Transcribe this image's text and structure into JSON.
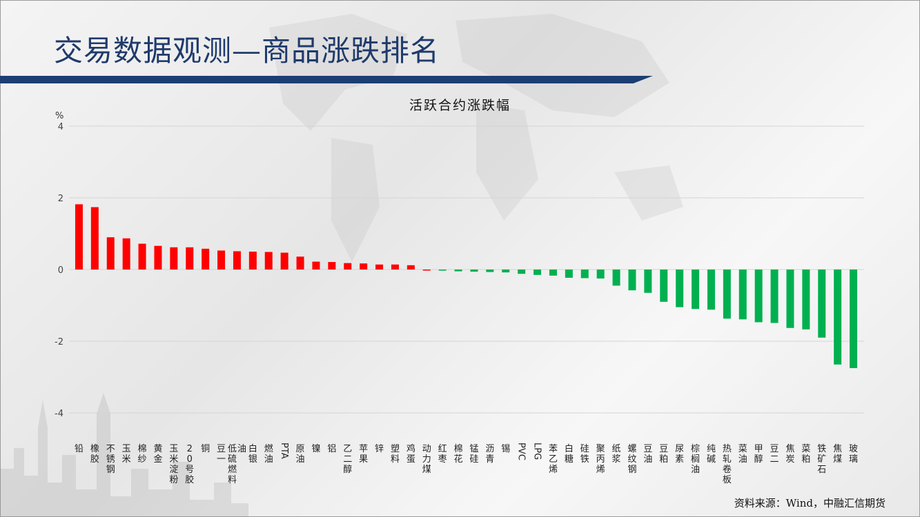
{
  "slide": {
    "title": "交易数据观测—商品涨跌排名",
    "source": "资料来源：Wind，中融汇信期货"
  },
  "colors": {
    "positive": "#ff0000",
    "negative": "#00b050",
    "title": "#1f3a6b",
    "title_bar": "#1c3e73"
  },
  "chart_data": {
    "type": "bar",
    "title": "活跃合约涨跌幅",
    "ylabel": "%",
    "ylim": [
      -4,
      4
    ],
    "yticks": [
      4,
      2,
      0,
      -2,
      -4
    ],
    "grid": true,
    "legend": "none",
    "categories": [
      "铅",
      "橡胶",
      "不锈钢",
      "玉米",
      "棉纱",
      "黄金",
      "玉米淀粉",
      "20号胶",
      "铜",
      "豆一",
      "低硫燃料油",
      "白银",
      "燃油",
      "PTA",
      "原油",
      "镍",
      "铝",
      "乙二醇",
      "苹果",
      "锌",
      "塑料",
      "鸡蛋",
      "动力煤",
      "红枣",
      "棉花",
      "锰硅",
      "沥青",
      "锡",
      "PVC",
      "LPG",
      "苯乙烯",
      "白糖",
      "硅铁",
      "聚丙烯",
      "纸浆",
      "螺纹钢",
      "豆油",
      "豆粕",
      "尿素",
      "棕榈油",
      "纯碱",
      "热轧卷板",
      "菜油",
      "甲醇",
      "豆二",
      "焦炭",
      "菜粕",
      "铁矿石",
      "焦煤",
      "玻璃"
    ],
    "values": [
      1.82,
      1.74,
      0.9,
      0.87,
      0.72,
      0.66,
      0.62,
      0.62,
      0.58,
      0.53,
      0.51,
      0.5,
      0.49,
      0.47,
      0.36,
      0.22,
      0.21,
      0.18,
      0.17,
      0.14,
      0.14,
      0.12,
      0,
      -0.03,
      -0.05,
      -0.06,
      -0.07,
      -0.08,
      -0.12,
      -0.15,
      -0.17,
      -0.23,
      -0.24,
      -0.25,
      -0.45,
      -0.58,
      -0.65,
      -0.9,
      -1.05,
      -1.1,
      -1.12,
      -1.37,
      -1.39,
      -1.47,
      -1.49,
      -1.63,
      -1.67,
      -1.9,
      -2.65,
      -2.75
    ]
  }
}
